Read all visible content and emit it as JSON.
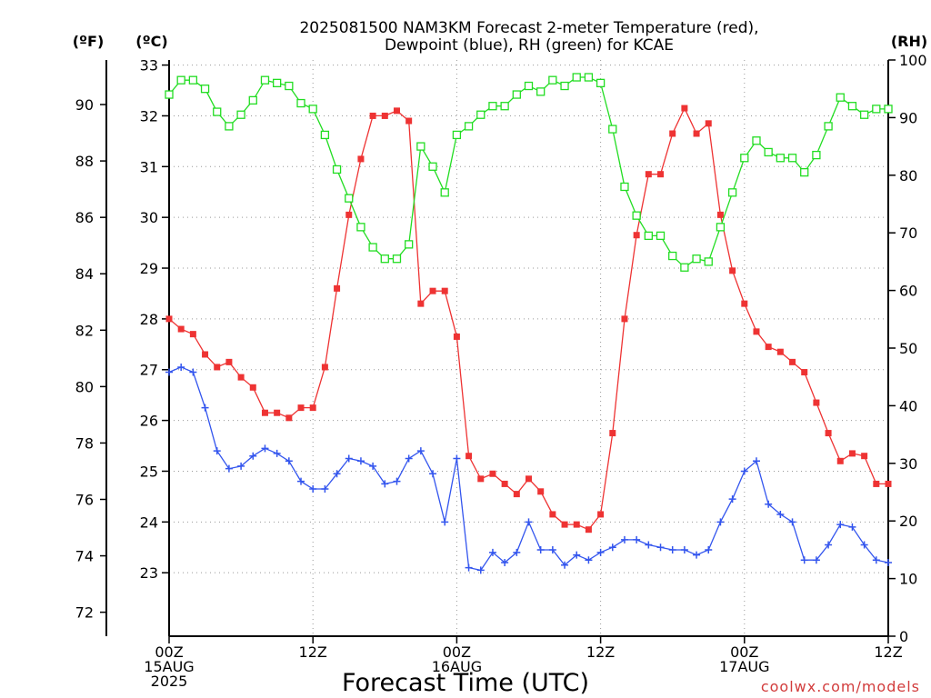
{
  "title_line1": "2025081500 NAM3KM Forecast 2-meter Temperature (red),",
  "title_line2": "Dewpoint (blue), RH (green) for KCAE",
  "unit_f": "(ºF)",
  "unit_c": "(ºC)",
  "unit_rh": "(RH)",
  "xlabel": "Forecast Time (UTC)",
  "credit": "coolwx.com/models",
  "colors": {
    "temperature": "#ee3333",
    "dewpoint": "#3355ee",
    "rh": "#22dd22",
    "grid": "#999999",
    "credit": "#d23c3c"
  },
  "chart_data": {
    "type": "line",
    "x_unit": "forecast hour (0 = 00Z 15AUG 2025)",
    "xlim": [
      0,
      60
    ],
    "ylim_c": [
      21.75,
      33.1
    ],
    "ylim_f": [
      71.15,
      91.58
    ],
    "ylim_rh": [
      0,
      100
    ],
    "grid": true,
    "x_ticks": [
      {
        "x": 0,
        "line1": "00Z",
        "line2": "15AUG",
        "line3": "2025"
      },
      {
        "x": 12,
        "line1": "12Z",
        "line2": "",
        "line3": ""
      },
      {
        "x": 24,
        "line1": "00Z",
        "line2": "16AUG",
        "line3": ""
      },
      {
        "x": 36,
        "line1": "12Z",
        "line2": "",
        "line3": ""
      },
      {
        "x": 48,
        "line1": "00Z",
        "line2": "17AUG",
        "line3": ""
      },
      {
        "x": 60,
        "line1": "12Z",
        "line2": "",
        "line3": ""
      }
    ],
    "y_ticks_c": [
      "23",
      "24",
      "25",
      "26",
      "27",
      "28",
      "29",
      "30",
      "31",
      "32",
      "33"
    ],
    "y_ticks_f": [
      "72",
      "74",
      "76",
      "78",
      "80",
      "82",
      "84",
      "86",
      "88",
      "90"
    ],
    "y_ticks_rh": [
      "0",
      "10",
      "20",
      "30",
      "40",
      "50",
      "60",
      "70",
      "80",
      "90",
      "100"
    ],
    "series": [
      {
        "key": "temperature",
        "unit": "°C",
        "marker": "filled-square",
        "x": [
          0,
          1,
          2,
          3,
          4,
          5,
          6,
          7,
          8,
          9,
          10,
          11,
          12,
          13,
          14,
          15,
          16,
          17,
          18,
          19,
          20,
          21,
          22,
          23,
          24,
          25,
          26,
          27,
          28,
          29,
          30,
          31,
          32,
          33,
          34,
          35,
          36,
          37,
          38,
          39,
          40,
          41,
          42,
          43,
          44,
          45,
          46,
          47,
          48,
          49,
          50,
          51,
          52,
          53,
          54,
          55,
          56,
          57,
          58,
          59,
          60
        ],
        "values": [
          28.0,
          27.8,
          27.7,
          27.3,
          27.05,
          27.15,
          26.85,
          26.65,
          26.15,
          26.15,
          26.05,
          26.25,
          26.25,
          27.05,
          28.6,
          30.05,
          31.15,
          32.0,
          32.0,
          32.1,
          31.9,
          28.3,
          28.55,
          28.55,
          27.65,
          25.3,
          24.85,
          24.95,
          24.75,
          24.55,
          24.85,
          24.6,
          24.15,
          23.95,
          23.95,
          23.85,
          24.15,
          25.75,
          28.0,
          29.65,
          30.85,
          30.85,
          31.65,
          32.15,
          31.65,
          31.85,
          30.05,
          28.95,
          28.3,
          27.75,
          27.45,
          27.35,
          27.15,
          26.95,
          26.35,
          25.75,
          25.2,
          25.35,
          25.3,
          24.75,
          24.75
        ]
      },
      {
        "key": "dewpoint",
        "unit": "°C",
        "marker": "plus",
        "x": [
          0,
          1,
          2,
          3,
          4,
          5,
          6,
          7,
          8,
          9,
          10,
          11,
          12,
          13,
          14,
          15,
          16,
          17,
          18,
          19,
          20,
          21,
          22,
          23,
          24,
          25,
          26,
          27,
          28,
          29,
          30,
          31,
          32,
          33,
          34,
          35,
          36,
          37,
          38,
          39,
          40,
          41,
          42,
          43,
          44,
          45,
          46,
          47,
          48,
          49,
          50,
          51,
          52,
          53,
          54,
          55,
          56,
          57,
          58,
          59,
          60
        ],
        "values": [
          26.95,
          27.05,
          26.95,
          26.25,
          25.4,
          25.05,
          25.1,
          25.3,
          25.45,
          25.35,
          25.2,
          24.8,
          24.65,
          24.65,
          24.95,
          25.25,
          25.2,
          25.1,
          24.75,
          24.8,
          25.25,
          25.4,
          24.95,
          24.0,
          25.25,
          23.1,
          23.05,
          23.4,
          23.2,
          23.4,
          24.0,
          23.45,
          23.45,
          23.15,
          23.35,
          23.25,
          23.4,
          23.5,
          23.65,
          23.65,
          23.55,
          23.5,
          23.45,
          23.45,
          23.35,
          23.45,
          24.0,
          24.45,
          25.0,
          25.2,
          24.35,
          24.15,
          24.0,
          23.25,
          23.25,
          23.55,
          23.95,
          23.9,
          23.55,
          23.25,
          23.2
        ]
      },
      {
        "key": "rh",
        "unit": "%",
        "marker": "open-square",
        "x": [
          0,
          1,
          2,
          3,
          4,
          5,
          6,
          7,
          8,
          9,
          10,
          11,
          12,
          13,
          14,
          15,
          16,
          17,
          18,
          19,
          20,
          21,
          22,
          23,
          24,
          25,
          26,
          27,
          28,
          29,
          30,
          31,
          32,
          33,
          34,
          35,
          36,
          37,
          38,
          39,
          40,
          41,
          42,
          43,
          44,
          45,
          46,
          47,
          48,
          49,
          50,
          51,
          52,
          53,
          54,
          55,
          56,
          57,
          58,
          59,
          60
        ],
        "values": [
          94,
          96.5,
          96.5,
          95,
          91,
          88.5,
          90.5,
          93,
          96.5,
          96,
          95.5,
          92.5,
          91.5,
          87,
          81,
          76,
          71,
          67.5,
          65.5,
          65.5,
          68,
          85,
          81.5,
          77,
          87,
          88.5,
          90.5,
          92,
          92,
          94,
          95.5,
          94.5,
          96.5,
          95.5,
          97,
          97,
          96,
          88,
          78,
          73,
          69.5,
          69.5,
          66,
          64,
          65.5,
          65,
          71,
          77,
          83,
          86,
          84,
          83,
          83,
          80.5,
          83.5,
          88.5,
          93.5,
          92,
          90.5,
          91.5,
          91.5
        ]
      }
    ]
  }
}
